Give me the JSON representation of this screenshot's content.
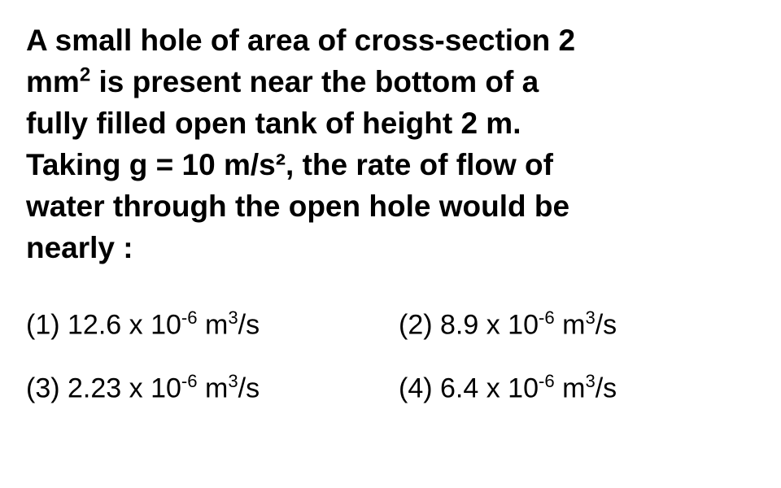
{
  "question": {
    "line1": "A small hole of area of cross-section 2",
    "line2_prefix": "mm",
    "line2_sup": "2",
    "line2_suffix": " is present near the bottom of a",
    "line3": "fully filled open tank of height 2 m.",
    "line4": "Taking g = 10 m/s², the rate of flow of",
    "line5": "water through the open hole would be",
    "line6": "nearly :"
  },
  "options": [
    {
      "number": "(1)",
      "value": "12.6 x 10",
      "exp": "-6",
      "unit_prefix": " m",
      "unit_exp": "3",
      "unit_suffix": "/s"
    },
    {
      "number": "(2)",
      "value": "8.9 x 10",
      "exp": "-6",
      "unit_prefix": " m",
      "unit_exp": "3",
      "unit_suffix": "/s"
    },
    {
      "number": "(3)",
      "value": "2.23 x 10",
      "exp": "-6",
      "unit_prefix": " m",
      "unit_exp": "3",
      "unit_suffix": "/s"
    },
    {
      "number": "(4)",
      "value": "6.4 x 10",
      "exp": "-6",
      "unit_prefix": " m",
      "unit_exp": "3",
      "unit_suffix": "/s"
    }
  ],
  "styling": {
    "background_color": "#ffffff",
    "text_color": "#000000",
    "question_fontsize": 37,
    "question_fontweight": "bold",
    "option_fontsize": 34,
    "option_fontweight": "normal",
    "font_family": "Arial"
  }
}
